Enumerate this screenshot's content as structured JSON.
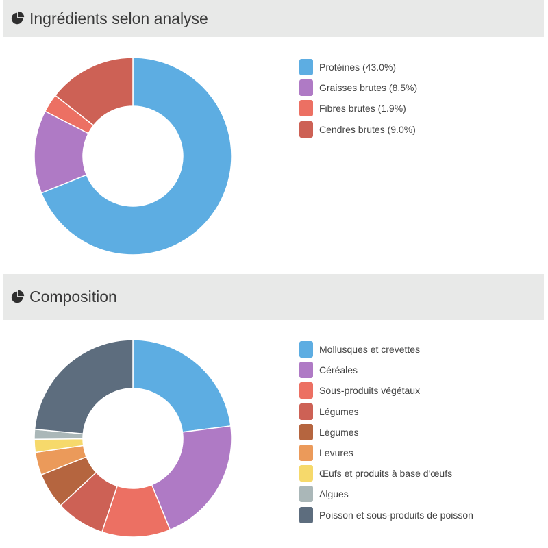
{
  "sections": [
    {
      "title": "Ingrédients selon analyse",
      "icon": "pie-chart-icon"
    },
    {
      "title": "Composition",
      "icon": "pie-chart-icon"
    }
  ],
  "chart_data": [
    {
      "type": "pie",
      "donut": true,
      "title": "Ingrédients selon analyse",
      "legend_position": "right",
      "categories": [
        "Protéines (43.0%)",
        "Graisses brutes (8.5%)",
        "Fibres brutes (1.9%)",
        "Cendres brutes (9.0%)"
      ],
      "values": [
        43.0,
        8.5,
        1.9,
        9.0
      ],
      "colors": [
        "#5dade2",
        "#af7ac5",
        "#ec7063",
        "#cd6155"
      ]
    },
    {
      "type": "pie",
      "donut": true,
      "title": "Composition",
      "legend_position": "right",
      "categories": [
        "Mollusques et crevettes",
        "Céréales",
        "Sous-produits végétaux",
        "Légumes",
        "Légumes",
        "Levures",
        "Œufs et produits à base d'œufs",
        "Algues",
        "Poisson et sous-produits de poisson"
      ],
      "values": [
        21.5,
        19.5,
        10.5,
        7.5,
        5.5,
        3.5,
        2.0,
        1.5,
        22.0
      ],
      "colors": [
        "#5dade2",
        "#af7ac5",
        "#ec7063",
        "#cd6155",
        "#b5653f",
        "#eb9a5a",
        "#f6d96b",
        "#aab7b8",
        "#5d6d7e"
      ]
    }
  ]
}
